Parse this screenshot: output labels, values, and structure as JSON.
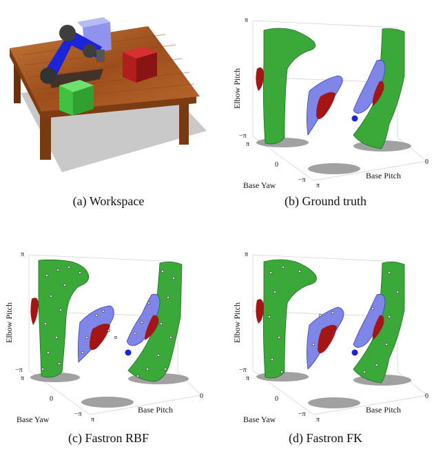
{
  "captions": {
    "a": "(a) Workspace",
    "b": "(b) Ground truth",
    "c": "(c) Fastron RBF",
    "d": "(d) Fastron FK"
  },
  "axes": {
    "z_label": "Elbow Pitch",
    "x_label": "Base Pitch",
    "y_label": "Base Yaw",
    "tick_pi": "π",
    "tick_neg_pi": "−π",
    "tick_zero": "0"
  },
  "colors": {
    "free_region": "#3aa93a",
    "obstacle_red": "#a41616",
    "obstacle_blue": "#7f86e8",
    "robot_arm": "#1c24d8",
    "table_wood": "#a5551f",
    "shadow": "#8a8a8a"
  }
}
